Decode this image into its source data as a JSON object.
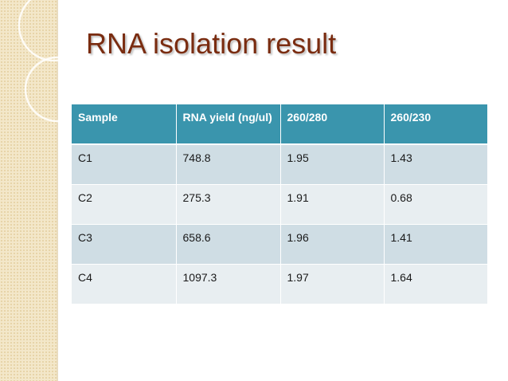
{
  "slide": {
    "title": "RNA isolation result"
  },
  "table": {
    "headers": [
      "Sample",
      "RNA yield (ng/ul)",
      "260/280",
      "260/230"
    ],
    "rows": [
      [
        "C1",
        "748.8",
        "1.95",
        "1.43"
      ],
      [
        "C2",
        "275.3",
        "1.91",
        "0.68"
      ],
      [
        "C3",
        "658.6",
        "1.96",
        "1.41"
      ],
      [
        "C4",
        "1097.3",
        "1.97",
        "1.64"
      ]
    ]
  },
  "colors": {
    "title": "#7a2c10",
    "header_bg": "#3a95ad",
    "row_odd": "#cfdde4",
    "row_even": "#e8eef1",
    "side_band": "#f3e7c9"
  }
}
